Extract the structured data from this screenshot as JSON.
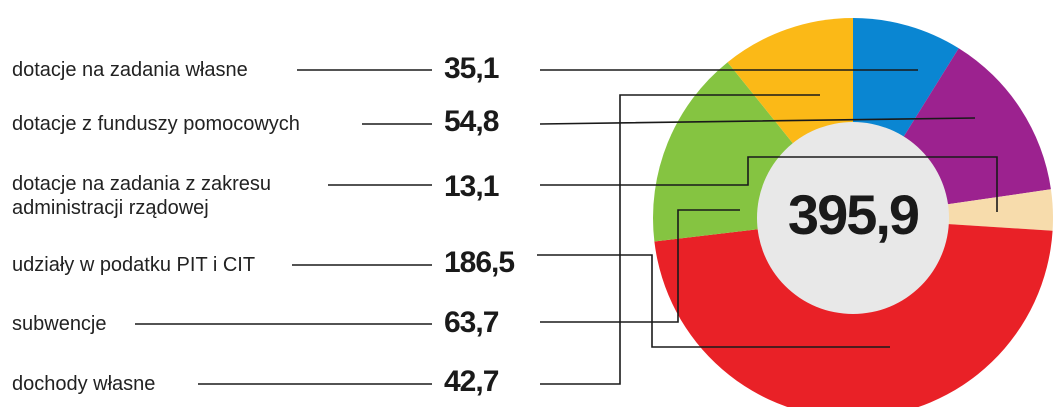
{
  "chart_data": {
    "type": "pie",
    "total": "395,9",
    "categories": [
      "dotacje na zadania własne",
      "dotacje z funduszy pomocowych",
      "dotacje na zadania z zakresu administracji rządowej",
      "udziały w podatku PIT i CIT",
      "subwencje",
      "dochody własne"
    ],
    "value_labels": [
      "35,1",
      "54,8",
      "13,1",
      "186,5",
      "63,7",
      "42,7"
    ],
    "values": [
      35.1,
      54.8,
      13.1,
      186.5,
      63.7,
      42.7
    ],
    "colors": [
      "#0a86d2",
      "#9c228f",
      "#f7dcac",
      "#e92127",
      "#85c441",
      "#fbb917"
    ],
    "slice_order": [
      0,
      1,
      2,
      3,
      4,
      5
    ]
  },
  "legend": [
    {
      "label": "dotacje na zadania własne",
      "value": "35,1"
    },
    {
      "label": "dotacje z funduszy pomocowych",
      "value": "54,8"
    },
    {
      "label_line1": "dotacje na zadania z zakresu",
      "label_line2": "administracji rządowej",
      "value": "13,1"
    },
    {
      "label": "udziały w podatku PIT i CIT",
      "value": "186,5"
    },
    {
      "label": "subwencje",
      "value": "63,7"
    },
    {
      "label": "dochody własne",
      "value": "42,7"
    }
  ]
}
